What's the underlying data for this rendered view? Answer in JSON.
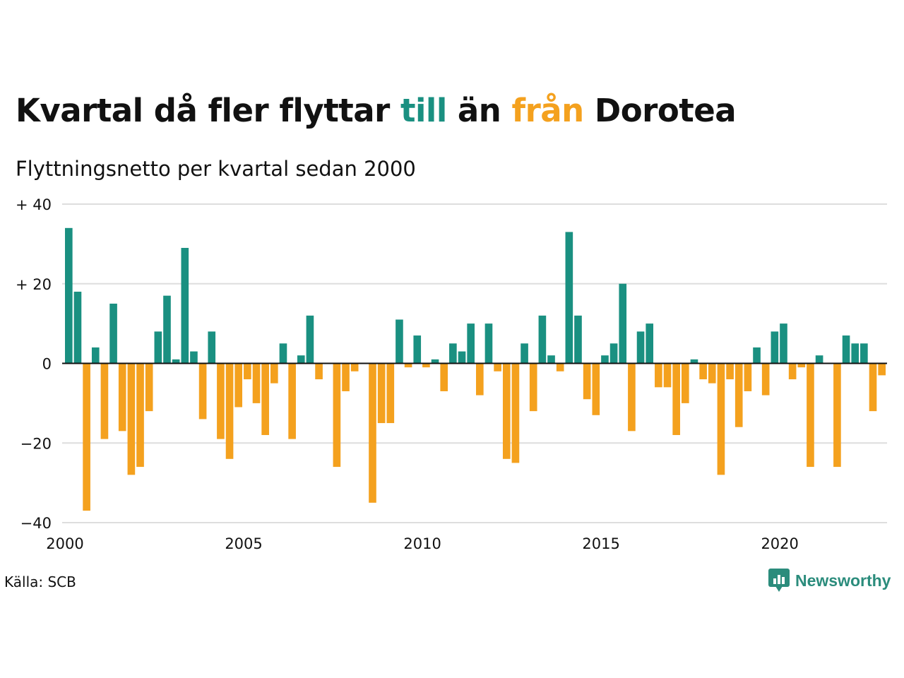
{
  "title": {
    "part1": "Kvartal då fler flyttar ",
    "part2": "till",
    "part3": " än ",
    "part4": "från",
    "part5": " Dorotea"
  },
  "subtitle": "Flyttningsnetto per kvartal sedan 2000",
  "source": "Källa: SCB",
  "brand": "Newsworthy",
  "colors": {
    "positive": "#1a9081",
    "negative": "#f4a11e",
    "grid": "#dedede"
  },
  "chart_data": {
    "type": "bar",
    "title": "Kvartal då fler flyttar till än från Dorotea",
    "subtitle": "Flyttningsnetto per kvartal sedan 2000",
    "start_year": 2000,
    "periods_per_year": 4,
    "ylim": [
      -40,
      40
    ],
    "yticks": [
      {
        "value": 40,
        "label": "+ 40"
      },
      {
        "value": 20,
        "label": "+ 20"
      },
      {
        "value": 0,
        "label": "0"
      },
      {
        "value": -20,
        "label": "−20"
      },
      {
        "value": -40,
        "label": "−40"
      }
    ],
    "xticks": [
      "2000",
      "2005",
      "2010",
      "2015",
      "2020"
    ],
    "grid": true,
    "values": [
      34,
      18,
      -37,
      4,
      -19,
      15,
      -17,
      -28,
      -26,
      -12,
      8,
      17,
      1,
      29,
      3,
      -14,
      8,
      -19,
      -24,
      -11,
      -4,
      -10,
      -18,
      -5,
      5,
      -19,
      2,
      12,
      -4,
      0,
      -26,
      -7,
      -2,
      0,
      -35,
      -15,
      -15,
      11,
      -1,
      7,
      -1,
      1,
      -7,
      5,
      3,
      10,
      -8,
      10,
      -2,
      -24,
      -25,
      5,
      -12,
      12,
      2,
      -2,
      33,
      12,
      -9,
      -13,
      2,
      5,
      20,
      -17,
      8,
      10,
      -6,
      -6,
      -18,
      -10,
      1,
      -4,
      -5,
      -28,
      -4,
      -16,
      -7,
      4,
      -8,
      8,
      10,
      -4,
      -1,
      -26,
      2,
      0,
      -26,
      7,
      5,
      5,
      -12,
      -3
    ]
  }
}
